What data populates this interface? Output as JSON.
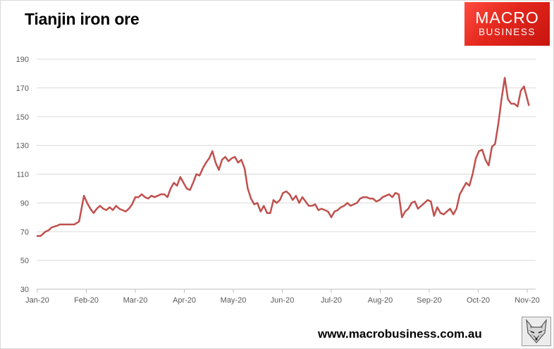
{
  "header": {
    "title": "Tianjin iron ore"
  },
  "logo": {
    "line1": "MACRO",
    "line2": "BUSINESS"
  },
  "footer": {
    "url": "www.macrobusiness.com.au"
  },
  "colors": {
    "line": "#c0504d",
    "grid": "#d9d9d9",
    "logo_red": "#e3271d"
  },
  "icons": {
    "fox": "fox-face-icon"
  },
  "chart_data": {
    "type": "line",
    "title": "Tianjin iron ore",
    "xlabel": "",
    "ylabel": "",
    "ylim": [
      30,
      190
    ],
    "yticks": [
      30,
      50,
      70,
      90,
      110,
      130,
      150,
      170,
      190
    ],
    "xticks": [
      "Jan-20",
      "Feb-20",
      "Mar-20",
      "Apr-20",
      "May-20",
      "Jun-20",
      "Jul-20",
      "Aug-20",
      "Sep-20",
      "Oct-20",
      "Nov-20"
    ],
    "xlim": [
      "2020-01-01",
      "2020-11-01"
    ],
    "grid": "horizontal",
    "legend": "none",
    "series": [
      {
        "color": "#c0504d",
        "x": [
          "2020-01-01",
          "2020-01-03",
          "2020-01-06",
          "2020-01-08",
          "2020-01-10",
          "2020-01-13",
          "2020-01-15",
          "2020-01-17",
          "2020-01-20",
          "2020-01-22",
          "2020-01-24",
          "2020-01-27",
          "2020-01-30",
          "2020-02-01",
          "2020-02-03",
          "2020-02-05",
          "2020-02-07",
          "2020-02-09",
          "2020-02-11",
          "2020-02-13",
          "2020-02-15",
          "2020-02-17",
          "2020-02-19",
          "2020-02-21",
          "2020-02-23",
          "2020-02-25",
          "2020-02-27",
          "2020-02-29",
          "2020-03-02",
          "2020-03-04",
          "2020-03-06",
          "2020-03-08",
          "2020-03-10",
          "2020-03-12",
          "2020-03-14",
          "2020-03-16",
          "2020-03-18",
          "2020-03-20",
          "2020-03-22",
          "2020-03-24",
          "2020-03-26",
          "2020-03-28",
          "2020-03-30",
          "2020-04-01",
          "2020-04-03",
          "2020-04-05",
          "2020-04-07",
          "2020-04-09",
          "2020-04-11",
          "2020-04-13",
          "2020-04-15",
          "2020-04-17",
          "2020-04-19",
          "2020-04-21",
          "2020-04-23",
          "2020-04-25",
          "2020-04-27",
          "2020-04-29",
          "2020-05-01",
          "2020-05-03",
          "2020-05-05",
          "2020-05-07",
          "2020-05-09",
          "2020-05-11",
          "2020-05-13",
          "2020-05-15",
          "2020-05-17",
          "2020-05-19",
          "2020-05-21",
          "2020-05-23",
          "2020-05-25",
          "2020-05-27",
          "2020-05-29",
          "2020-05-31",
          "2020-06-02",
          "2020-06-04",
          "2020-06-06",
          "2020-06-08",
          "2020-06-10",
          "2020-06-12",
          "2020-06-14",
          "2020-06-16",
          "2020-06-18",
          "2020-06-20",
          "2020-06-22",
          "2020-06-24",
          "2020-06-26",
          "2020-06-28",
          "2020-06-30",
          "2020-07-02",
          "2020-07-04",
          "2020-07-06",
          "2020-07-08",
          "2020-07-10",
          "2020-07-12",
          "2020-07-14",
          "2020-07-16",
          "2020-07-18",
          "2020-07-20",
          "2020-07-22",
          "2020-07-24",
          "2020-07-26",
          "2020-07-28",
          "2020-07-30",
          "2020-08-01",
          "2020-08-03",
          "2020-08-05",
          "2020-08-07",
          "2020-08-09",
          "2020-08-11",
          "2020-08-13",
          "2020-08-15",
          "2020-08-17",
          "2020-08-19",
          "2020-08-21",
          "2020-08-23",
          "2020-08-25",
          "2020-08-27",
          "2020-08-29",
          "2020-08-31",
          "2020-09-02",
          "2020-09-04",
          "2020-09-06",
          "2020-09-08",
          "2020-09-10",
          "2020-09-12",
          "2020-09-14",
          "2020-09-16",
          "2020-09-18",
          "2020-09-20",
          "2020-09-22",
          "2020-09-24",
          "2020-09-26",
          "2020-09-28",
          "2020-09-30",
          "2020-10-02",
          "2020-10-04",
          "2020-10-06",
          "2020-10-08",
          "2020-10-10",
          "2020-10-12",
          "2020-10-14",
          "2020-10-16",
          "2020-10-18",
          "2020-10-20",
          "2020-10-22",
          "2020-10-24",
          "2020-10-26",
          "2020-10-28",
          "2020-10-30",
          "2020-11-02"
        ],
        "y": [
          67,
          67,
          70,
          71,
          73,
          74,
          75,
          75,
          75,
          75,
          75,
          77,
          95,
          90,
          86,
          83,
          86,
          88,
          86,
          85,
          87,
          85,
          88,
          86,
          85,
          84,
          86,
          89,
          94,
          94,
          96,
          94,
          93,
          95,
          94,
          95,
          96,
          96,
          94,
          100,
          104,
          102,
          108,
          104,
          100,
          99,
          104,
          110,
          109,
          114,
          118,
          121,
          126,
          118,
          113,
          120,
          122,
          119,
          121,
          122,
          118,
          120,
          114,
          100,
          93,
          89,
          90,
          84,
          88,
          83,
          83,
          92,
          90,
          92,
          97,
          98,
          96,
          92,
          95,
          90,
          94,
          91,
          88,
          88,
          89,
          85,
          86,
          85,
          84,
          80,
          84,
          85,
          87,
          88,
          90,
          88,
          89,
          90,
          93,
          94,
          94,
          93,
          93,
          91,
          92,
          94,
          95,
          96,
          94,
          97,
          96,
          80,
          84,
          86,
          90,
          91,
          86,
          88,
          90,
          92,
          91,
          81,
          87,
          83,
          82,
          84,
          86,
          82,
          86,
          96,
          100,
          104,
          102,
          110,
          121,
          126,
          127,
          120,
          116,
          129,
          131,
          145,
          162,
          177,
          162,
          159,
          159,
          157,
          168,
          171,
          158
        ]
      }
    ]
  }
}
